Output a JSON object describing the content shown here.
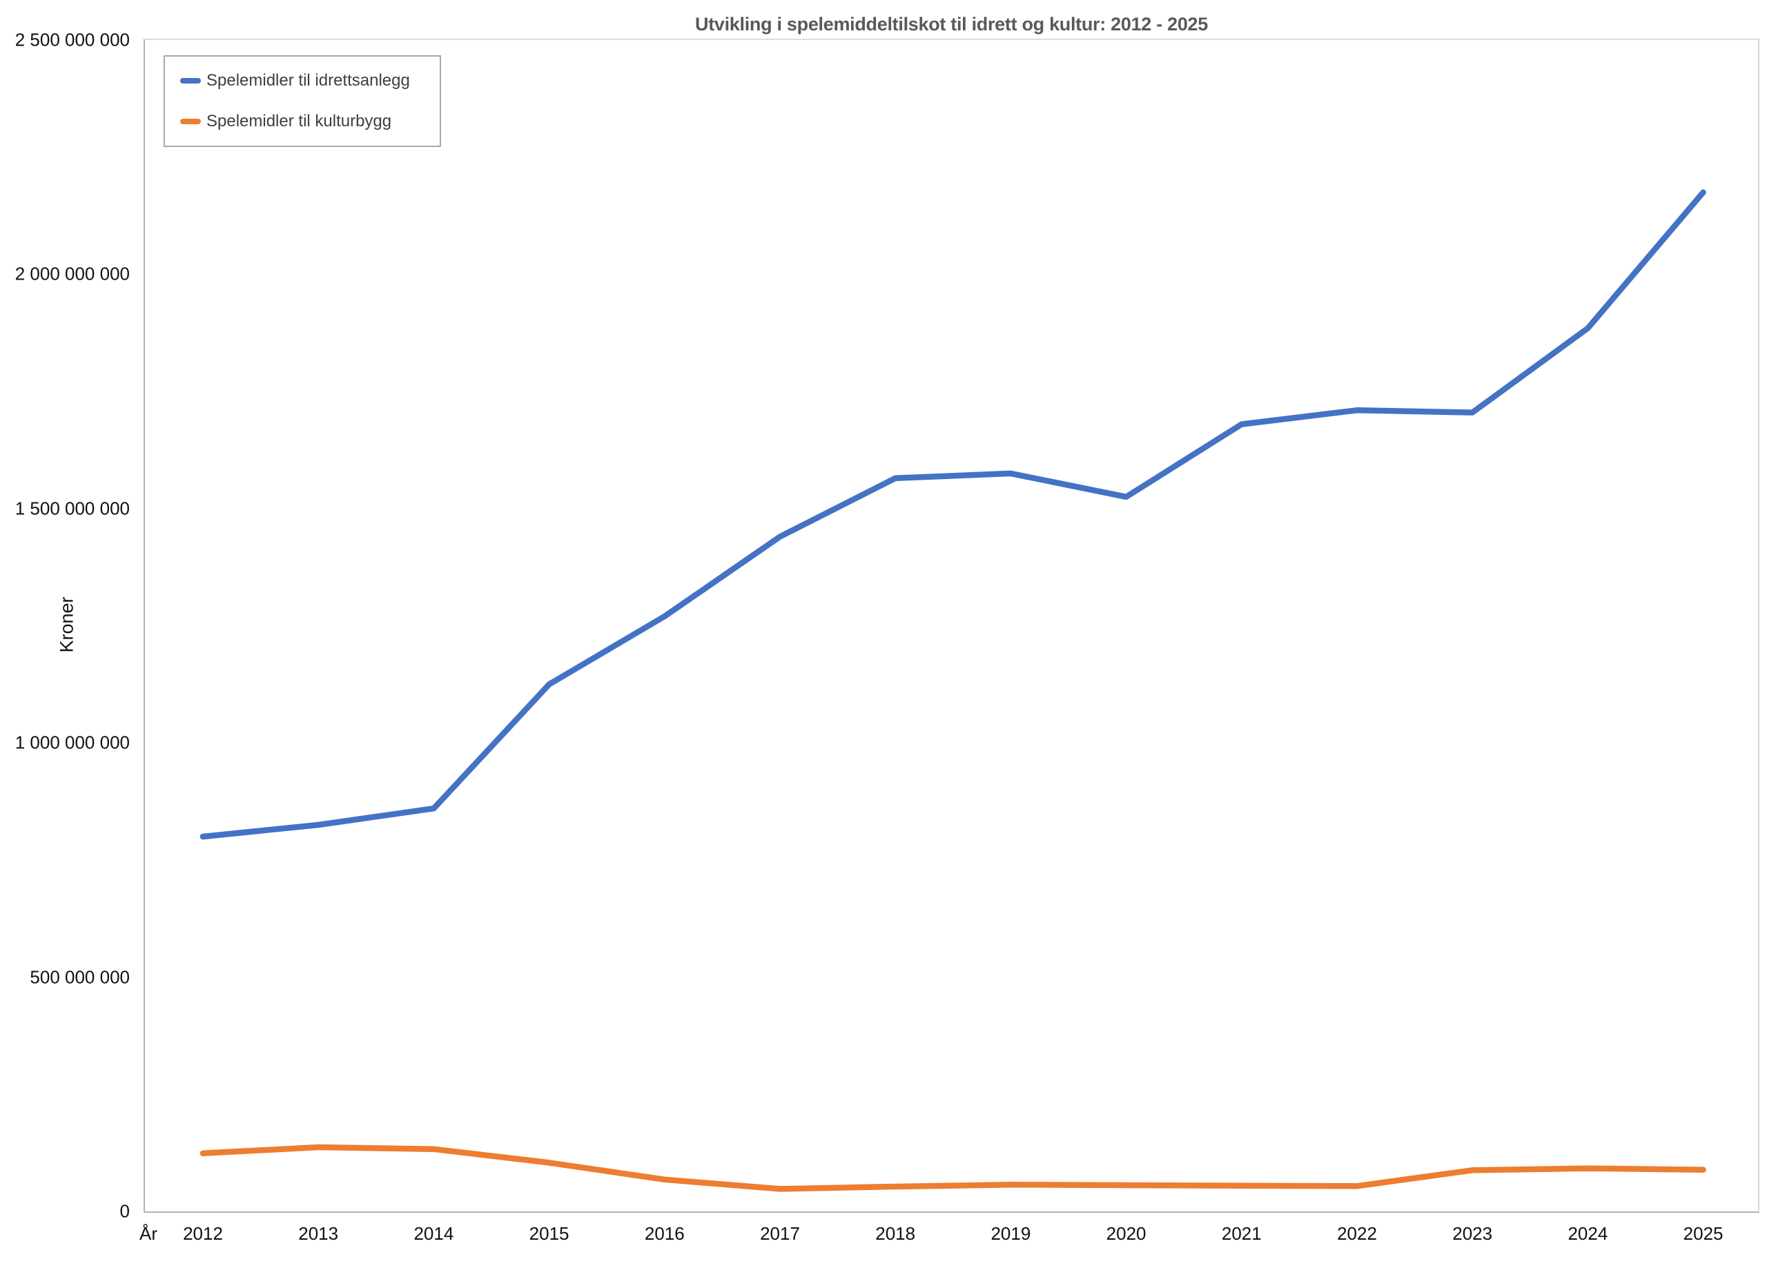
{
  "title": "Utvikling i spelemiddeltilskot til idrett og kultur: 2012 - 2025",
  "y_axis": {
    "title": "Kroner",
    "ticks": [
      {
        "value": 0,
        "label": "0"
      },
      {
        "value": 500000000,
        "label": "500 000 000"
      },
      {
        "value": 1000000000,
        "label": "1 000 000 000"
      },
      {
        "value": 1500000000,
        "label": "1 500 000 000"
      },
      {
        "value": 2000000000,
        "label": "2 000 000 000"
      },
      {
        "value": 2500000000,
        "label": "2 500 000 000"
      }
    ]
  },
  "x_axis": {
    "title": "År",
    "ticks": [
      "2012",
      "2013",
      "2014",
      "2015",
      "2016",
      "2017",
      "2018",
      "2019",
      "2020",
      "2021",
      "2022",
      "2023",
      "2024",
      "2025"
    ]
  },
  "legend": {
    "items": [
      {
        "label": "Spelemidler til idrettsanlegg",
        "color": "#4472c4"
      },
      {
        "label": "Spelemidler til kulturbygg",
        "color": "#ed7d31"
      }
    ]
  },
  "chart_data": {
    "type": "line",
    "title": "Utvikling i spelemiddeltilskot til idrett og kultur: 2012 - 2025",
    "xlabel": "År",
    "ylabel": "Kroner",
    "categories": [
      2012,
      2013,
      2014,
      2015,
      2016,
      2017,
      2018,
      2019,
      2020,
      2021,
      2022,
      2023,
      2024,
      2025
    ],
    "series": [
      {
        "name": "Spelemidler til idrettsanlegg",
        "color": "#4472c4",
        "values": [
          800000000,
          825000000,
          860000000,
          1125000000,
          1270000000,
          1440000000,
          1565000000,
          1575000000,
          1525000000,
          1680000000,
          1710000000,
          1705000000,
          1885000000,
          2175000000
        ]
      },
      {
        "name": "Spelemidler til kulturbygg",
        "color": "#ed7d31",
        "values": [
          124000000,
          137000000,
          133000000,
          104000000,
          68000000,
          48000000,
          53000000,
          57000000,
          56000000,
          55000000,
          54000000,
          88000000,
          92000000,
          89000000
        ]
      }
    ],
    "ylim": [
      0,
      2500000000
    ],
    "grid": false,
    "legend_position": "top-left"
  }
}
